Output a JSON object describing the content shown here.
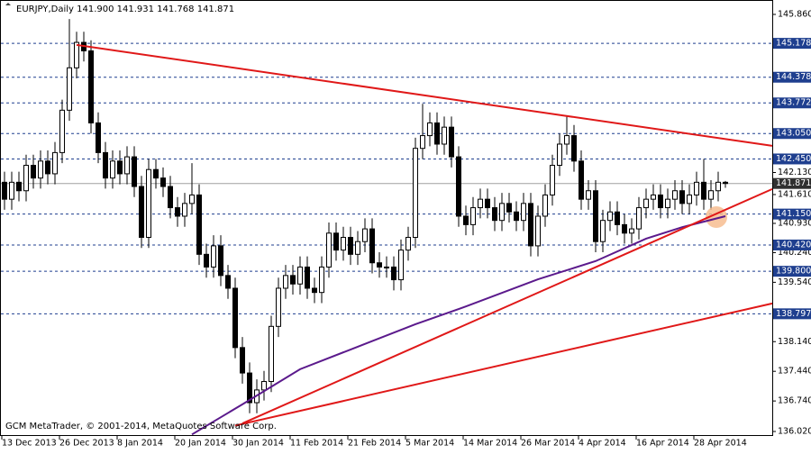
{
  "chart_data": {
    "type": "candlestick",
    "title": "EURJPY,Daily  141.900 141.931 141.768 141.871",
    "footer": "GCM MetaTrader, © 2001-2014, MetaQuotes Software Corp.",
    "categories": [
      "13 Dec 2013",
      null,
      null,
      null,
      null,
      null,
      null,
      null,
      "26 Dec 2013",
      null,
      null,
      null,
      null,
      null,
      null,
      null,
      "8 Jan 2014",
      null,
      null,
      null,
      null,
      null,
      null,
      null,
      "20 Jan 2014",
      null,
      null,
      null,
      null,
      null,
      null,
      null,
      "30 Jan 2014",
      null,
      null,
      null,
      null,
      null,
      null,
      null,
      "11 Feb 2014",
      null,
      null,
      null,
      null,
      null,
      null,
      null,
      "21 Feb 2014",
      null,
      null,
      null,
      null,
      null,
      null,
      null,
      "5 Mar 2014",
      null,
      null,
      null,
      null,
      null,
      null,
      null,
      "14 Mar 2014",
      null,
      null,
      null,
      null,
      null,
      null,
      null,
      "26 Mar 2014",
      null,
      null,
      null,
      null,
      null,
      null,
      null,
      "4 Apr 2014",
      null,
      null,
      null,
      null,
      null,
      null,
      null,
      "16 Apr 2014",
      null,
      null,
      null,
      null,
      null,
      null,
      null,
      "28 Apr 2014",
      null,
      null,
      null,
      null
    ],
    "open": [
      141.9,
      141.5,
      141.9,
      141.7,
      142.3,
      142.0,
      142.4,
      142.1,
      142.6,
      143.6,
      144.6,
      145.2,
      145.0,
      143.3,
      142.6,
      142.0,
      142.4,
      142.1,
      142.5,
      141.8,
      140.6,
      142.2,
      142.0,
      141.8,
      141.3,
      141.1,
      141.4,
      141.6,
      140.2,
      139.9,
      140.4,
      139.7,
      139.4,
      138.0,
      137.4,
      136.7,
      137.0,
      137.2,
      138.5,
      139.4,
      139.7,
      139.5,
      139.9,
      139.4,
      139.3,
      139.9,
      140.7,
      140.3,
      140.6,
      140.2,
      140.5,
      140.8,
      140.0,
      139.9,
      139.9,
      139.6,
      140.3,
      140.6,
      142.7,
      143.0,
      143.3,
      142.8,
      143.2,
      142.5,
      141.1,
      140.9,
      141.3,
      141.5,
      141.3,
      141.0,
      141.4,
      141.2,
      141.0,
      141.4,
      140.4,
      141.1,
      141.6,
      142.3,
      142.8,
      143.0,
      142.4,
      141.5,
      141.7,
      140.5,
      141.0,
      141.2,
      140.9,
      140.7,
      140.8,
      141.3,
      141.5,
      141.6,
      141.3,
      141.5,
      141.7,
      141.4,
      141.6,
      141.9,
      141.5,
      141.7,
      141.9
    ],
    "high": [
      142.15,
      142.15,
      142.15,
      142.55,
      142.55,
      142.65,
      142.65,
      142.85,
      143.85,
      145.75,
      145.45,
      145.45,
      145.25,
      143.55,
      142.85,
      142.65,
      142.65,
      142.75,
      142.75,
      142.05,
      142.45,
      142.45,
      142.25,
      142.05,
      141.55,
      141.65,
      142.35,
      141.85,
      140.45,
      140.65,
      140.65,
      139.95,
      139.65,
      138.25,
      137.65,
      137.25,
      137.45,
      138.75,
      139.65,
      139.95,
      139.95,
      140.15,
      140.15,
      139.65,
      140.15,
      140.95,
      140.95,
      140.85,
      140.85,
      140.75,
      141.05,
      141.05,
      140.25,
      140.15,
      140.15,
      140.55,
      140.85,
      142.95,
      143.75,
      143.55,
      143.55,
      143.45,
      143.45,
      142.75,
      141.35,
      141.55,
      141.75,
      141.75,
      141.55,
      141.65,
      141.65,
      141.45,
      141.65,
      141.65,
      141.35,
      141.85,
      142.55,
      143.05,
      143.45,
      143.25,
      142.65,
      141.95,
      141.95,
      141.25,
      141.45,
      141.45,
      141.15,
      141.05,
      141.55,
      141.75,
      141.85,
      141.85,
      141.75,
      141.95,
      141.95,
      141.85,
      142.15,
      142.45,
      141.95,
      142.15,
      141.931
    ],
    "low": [
      141.25,
      141.25,
      141.45,
      141.45,
      141.75,
      141.75,
      141.85,
      141.85,
      142.35,
      143.35,
      144.35,
      144.75,
      143.05,
      142.35,
      141.75,
      141.75,
      141.85,
      141.85,
      141.55,
      140.35,
      140.35,
      141.75,
      141.55,
      141.05,
      140.85,
      140.85,
      141.15,
      139.95,
      139.65,
      139.65,
      139.45,
      139.15,
      137.75,
      137.15,
      136.45,
      136.45,
      136.75,
      136.95,
      138.25,
      139.15,
      139.25,
      139.25,
      139.15,
      139.05,
      139.05,
      139.65,
      140.05,
      140.05,
      139.95,
      139.95,
      140.25,
      139.75,
      139.65,
      139.65,
      139.35,
      139.35,
      140.05,
      140.35,
      142.45,
      142.75,
      142.55,
      142.55,
      142.25,
      140.85,
      140.65,
      140.65,
      141.05,
      141.05,
      140.75,
      140.75,
      140.95,
      140.75,
      140.75,
      140.15,
      140.15,
      140.85,
      141.35,
      142.05,
      142.55,
      142.15,
      141.25,
      141.25,
      140.25,
      140.25,
      140.75,
      140.65,
      140.45,
      140.45,
      140.55,
      141.05,
      141.25,
      141.05,
      141.05,
      141.25,
      141.15,
      141.15,
      141.35,
      141.25,
      141.25,
      141.45,
      141.768
    ],
    "close": [
      141.5,
      141.9,
      141.7,
      142.3,
      142.0,
      142.4,
      142.1,
      142.6,
      143.6,
      144.6,
      145.2,
      145.0,
      143.3,
      142.6,
      142.0,
      142.4,
      142.1,
      142.5,
      141.8,
      140.6,
      142.2,
      142.0,
      141.8,
      141.3,
      141.1,
      141.4,
      141.6,
      140.2,
      139.9,
      140.4,
      139.7,
      139.4,
      138.0,
      137.4,
      136.7,
      137.0,
      137.2,
      138.5,
      139.4,
      139.7,
      139.5,
      139.9,
      139.4,
      139.3,
      139.9,
      140.7,
      140.3,
      140.6,
      140.2,
      140.5,
      140.8,
      140.0,
      139.9,
      139.9,
      139.6,
      140.3,
      140.6,
      142.7,
      143.0,
      143.3,
      142.8,
      143.2,
      142.5,
      141.1,
      140.9,
      141.3,
      141.5,
      141.3,
      141.0,
      141.4,
      141.2,
      141.0,
      141.4,
      140.4,
      141.1,
      141.6,
      142.3,
      142.8,
      143.0,
      142.4,
      141.5,
      141.7,
      140.5,
      141.0,
      141.2,
      140.9,
      140.7,
      140.8,
      141.3,
      141.5,
      141.6,
      141.3,
      141.5,
      141.7,
      141.4,
      141.6,
      141.9,
      141.5,
      141.7,
      141.9,
      141.871
    ],
    "up_color": "#ffffff",
    "down_color": "#000000",
    "moving_average": {
      "color": "#5b1a8c",
      "x": [
        26,
        33,
        41,
        49,
        57,
        64,
        74,
        82,
        89,
        94,
        100
      ],
      "values": [
        135.95,
        136.66,
        137.49,
        138.02,
        138.55,
        138.97,
        139.61,
        140.04,
        140.57,
        140.84,
        141.1
      ]
    },
    "trendlines": [
      {
        "color": "#e01818",
        "x1": 10,
        "y1": 145.14,
        "x2": 106.5,
        "y2": 142.76
      },
      {
        "color": "#e01818",
        "x1": 33,
        "y1": 136.21,
        "x2": 106.5,
        "y2": 141.74
      },
      {
        "color": "#e01818",
        "x1": 32,
        "y1": 136.16,
        "x2": 106.5,
        "y2": 139.04
      }
    ],
    "levels": [
      {
        "value": 145.178,
        "label": "145.178"
      },
      {
        "value": 144.378,
        "label": "144.378"
      },
      {
        "value": 143.772,
        "label": "143.772"
      },
      {
        "value": 143.05,
        "label": "143.050"
      },
      {
        "value": 142.45,
        "label": "142.450"
      },
      {
        "value": 141.15,
        "label": "141.150"
      },
      {
        "value": 140.42,
        "label": "140.420"
      },
      {
        "value": 139.8,
        "label": "139.800"
      },
      {
        "value": 138.797,
        "label": "138.797"
      }
    ],
    "level_color": "#1f3f8f",
    "last_price": {
      "value": 141.871,
      "label": "141.871"
    },
    "ylim": [
      135.914,
      146.2
    ],
    "yticks": [
      {
        "value": 145.86,
        "label": "145.860"
      },
      {
        "value": 142.13,
        "label": "142.130"
      },
      {
        "value": 141.61,
        "label": "141.610"
      },
      {
        "value": 140.93,
        "label": "140.930"
      },
      {
        "value": 140.24,
        "label": "140.240"
      },
      {
        "value": 139.54,
        "label": "139.540"
      },
      {
        "value": 138.14,
        "label": "138.140"
      },
      {
        "value": 137.44,
        "label": "137.440"
      },
      {
        "value": 136.74,
        "label": "136.740"
      },
      {
        "value": 136.02,
        "label": "136.020"
      }
    ]
  }
}
